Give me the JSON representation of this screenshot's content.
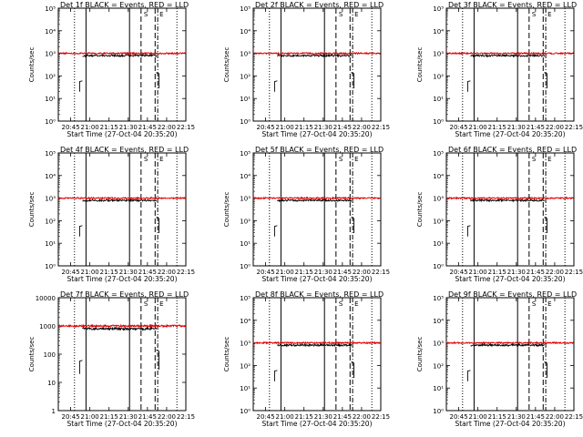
{
  "chart_data": [
    {
      "type": "line",
      "title": "Det 1f BLACK = Events, RED = LLD",
      "xlabel": "Start Time (27-Oct-04 20:35:20)",
      "ylabel": "Counts/sec",
      "yscale": "log",
      "ylim": [
        1,
        100000
      ],
      "yticks": [
        "10⁰",
        "10¹",
        "10²",
        "10³",
        "10⁴",
        "10⁵"
      ],
      "xticks": [
        "20:45",
        "21:00",
        "21:15",
        "21:30",
        "21:45",
        "22:00",
        "22:15"
      ],
      "xlim": [
        "20:35:20",
        "22:15"
      ],
      "series": [
        {
          "color": "#000000"
        },
        {
          "color": "#e00000"
        }
      ],
      "solid_lines": [
        "20:57",
        "21:31"
      ],
      "dashed_lines": [
        "21:40",
        "21:51"
      ],
      "dotted_lines": [
        "20:48",
        "22:08"
      ],
      "dashdot_lines": [
        "21:53"
      ],
      "legend_marks": [
        "S",
        "E"
      ]
    },
    {
      "type": "line",
      "title": "Det 2f BLACK = Events, RED = LLD",
      "xlabel": "Start Time (27-Oct-04 20:35:20)",
      "ylabel": "Counts/sec",
      "yscale": "log",
      "ylim": [
        1,
        100000
      ],
      "yticks": [
        "10⁰",
        "10¹",
        "10²",
        "10³",
        "10⁴",
        "10⁵"
      ],
      "xticks": [
        "20:45",
        "21:00",
        "21:15",
        "21:30",
        "21:45",
        "22:00",
        "22:15"
      ],
      "xlim": [
        "20:35:20",
        "22:15"
      ],
      "series": [
        {
          "color": "#000000"
        },
        {
          "color": "#e00000"
        }
      ],
      "solid_lines": [
        "20:57",
        "21:31"
      ],
      "dashed_lines": [
        "21:40",
        "21:51"
      ],
      "dotted_lines": [
        "20:48",
        "22:08"
      ],
      "dashdot_lines": [
        "21:53"
      ],
      "legend_marks": [
        "S",
        "E"
      ]
    },
    {
      "type": "line",
      "title": "Det 3f BLACK = Events, RED = LLD",
      "xlabel": "Start Time (27-Oct-04 20:35:20)",
      "ylabel": "Counts/sec",
      "yscale": "log",
      "ylim": [
        1,
        100000
      ],
      "yticks": [
        "10⁰",
        "10¹",
        "10²",
        "10³",
        "10⁴",
        "10⁵"
      ],
      "xticks": [
        "20:45",
        "21:00",
        "21:15",
        "21:30",
        "21:45",
        "22:00",
        "22:15"
      ],
      "xlim": [
        "20:35:20",
        "22:15"
      ],
      "series": [
        {
          "color": "#000000"
        },
        {
          "color": "#e00000"
        }
      ],
      "solid_lines": [
        "20:57",
        "21:31"
      ],
      "dashed_lines": [
        "21:40",
        "21:51"
      ],
      "dotted_lines": [
        "20:48",
        "22:08"
      ],
      "dashdot_lines": [
        "21:53"
      ],
      "legend_marks": [
        "S",
        "E"
      ]
    },
    {
      "type": "line",
      "title": "Det 4f BLACK = Events, RED = LLD",
      "xlabel": "Start Time (27-Oct-04 20:35:20)",
      "ylabel": "Counts/sec",
      "yscale": "log",
      "ylim": [
        1,
        100000
      ],
      "yticks": [
        "10⁰",
        "10¹",
        "10²",
        "10³",
        "10⁴",
        "10⁵"
      ],
      "xticks": [
        "20:45",
        "21:00",
        "21:15",
        "21:30",
        "21:45",
        "22:00",
        "22:15"
      ],
      "xlim": [
        "20:35:20",
        "22:15"
      ],
      "series": [
        {
          "color": "#000000"
        },
        {
          "color": "#e00000"
        }
      ],
      "solid_lines": [
        "20:57",
        "21:31"
      ],
      "dashed_lines": [
        "21:40",
        "21:51"
      ],
      "dotted_lines": [
        "20:48",
        "22:08"
      ],
      "dashdot_lines": [
        "21:53"
      ],
      "legend_marks": [
        "S",
        "E"
      ]
    },
    {
      "type": "line",
      "title": "Det 5f BLACK = Events, RED = LLD",
      "xlabel": "Start Time (27-Oct-04 20:35:20)",
      "ylabel": "Counts/sec",
      "yscale": "log",
      "ylim": [
        1,
        100000
      ],
      "yticks": [
        "10⁰",
        "10¹",
        "10²",
        "10³",
        "10⁴",
        "10⁵"
      ],
      "xticks": [
        "20:45",
        "21:00",
        "21:15",
        "21:30",
        "21:45",
        "22:00",
        "22:15"
      ],
      "xlim": [
        "20:35:20",
        "22:15"
      ],
      "series": [
        {
          "color": "#000000"
        },
        {
          "color": "#e00000"
        }
      ],
      "solid_lines": [
        "20:57",
        "21:31"
      ],
      "dashed_lines": [
        "21:40",
        "21:51"
      ],
      "dotted_lines": [
        "20:48",
        "22:08"
      ],
      "dashdot_lines": [
        "21:53"
      ],
      "legend_marks": [
        "S",
        "E"
      ]
    },
    {
      "type": "line",
      "title": "Det 6f BLACK = Events, RED = LLD",
      "xlabel": "Start Time (27-Oct-04 20:35:20)",
      "ylabel": "Counts/sec",
      "yscale": "log",
      "ylim": [
        1,
        100000
      ],
      "yticks": [
        "10⁰",
        "10¹",
        "10²",
        "10³",
        "10⁴",
        "10⁵"
      ],
      "xticks": [
        "20:45",
        "21:00",
        "21:15",
        "21:30",
        "21:45",
        "22:00",
        "22:15"
      ],
      "xlim": [
        "20:35:20",
        "22:15"
      ],
      "series": [
        {
          "color": "#000000"
        },
        {
          "color": "#e00000"
        }
      ],
      "solid_lines": [
        "20:57",
        "21:31"
      ],
      "dashed_lines": [
        "21:40",
        "21:51"
      ],
      "dotted_lines": [
        "20:48",
        "22:08"
      ],
      "dashdot_lines": [
        "21:53"
      ],
      "legend_marks": [
        "S",
        "E"
      ]
    },
    {
      "type": "line",
      "title": "Det 7f BLACK = Events, RED = LLD",
      "xlabel": "Start Time (27-Oct-04 20:35:20)",
      "ylabel": "Counts/sec",
      "yscale": "log",
      "ylim": [
        1,
        10000
      ],
      "yticks": [
        "1",
        "10",
        "100",
        "1000",
        "10000"
      ],
      "xticks": [
        "20:45",
        "21:00",
        "21:15",
        "21:30",
        "21:45",
        "22:00",
        "22:15"
      ],
      "xlim": [
        "20:35:20",
        "22:15"
      ],
      "series": [
        {
          "color": "#000000"
        },
        {
          "color": "#e00000"
        }
      ],
      "solid_lines": [
        "20:57",
        "21:31"
      ],
      "dashed_lines": [
        "21:40",
        "21:51"
      ],
      "dotted_lines": [
        "20:48",
        "22:08"
      ],
      "dashdot_lines": [
        "21:53"
      ],
      "legend_marks": [
        "S",
        "E"
      ]
    },
    {
      "type": "line",
      "title": "Det 8f BLACK = Events, RED = LLD",
      "xlabel": "Start Time (27-Oct-04 20:35:20)",
      "ylabel": "Counts/sec",
      "yscale": "log",
      "ylim": [
        1,
        100000
      ],
      "yticks": [
        "10⁰",
        "10¹",
        "10²",
        "10³",
        "10⁴",
        "10⁵"
      ],
      "xticks": [
        "20:45",
        "21:00",
        "21:15",
        "21:30",
        "21:45",
        "22:00",
        "22:15"
      ],
      "xlim": [
        "20:35:20",
        "22:15"
      ],
      "series": [
        {
          "color": "#000000"
        },
        {
          "color": "#e00000"
        }
      ],
      "solid_lines": [
        "20:57",
        "21:31"
      ],
      "dashed_lines": [
        "21:40",
        "21:51"
      ],
      "dotted_lines": [
        "20:48",
        "22:08"
      ],
      "dashdot_lines": [
        "21:53"
      ],
      "legend_marks": [
        "S",
        "E"
      ]
    },
    {
      "type": "line",
      "title": "Det 9f BLACK = Events, RED = LLD",
      "xlabel": "Start Time (27-Oct-04 20:35:20)",
      "ylabel": "Counts/sec",
      "yscale": "log",
      "ylim": [
        1,
        100000
      ],
      "yticks": [
        "10⁰",
        "10¹",
        "10²",
        "10³",
        "10⁴",
        "10⁵"
      ],
      "xticks": [
        "20:45",
        "21:00",
        "21:15",
        "21:30",
        "21:45",
        "22:00",
        "22:15"
      ],
      "xlim": [
        "20:35:20",
        "22:15"
      ],
      "series": [
        {
          "color": "#000000"
        },
        {
          "color": "#e00000"
        }
      ],
      "solid_lines": [
        "20:57",
        "21:31"
      ],
      "dashed_lines": [
        "21:40",
        "21:51"
      ],
      "dotted_lines": [
        "20:48",
        "22:08"
      ],
      "dashdot_lines": [
        "21:53"
      ],
      "legend_marks": [
        "S",
        "E"
      ]
    }
  ]
}
